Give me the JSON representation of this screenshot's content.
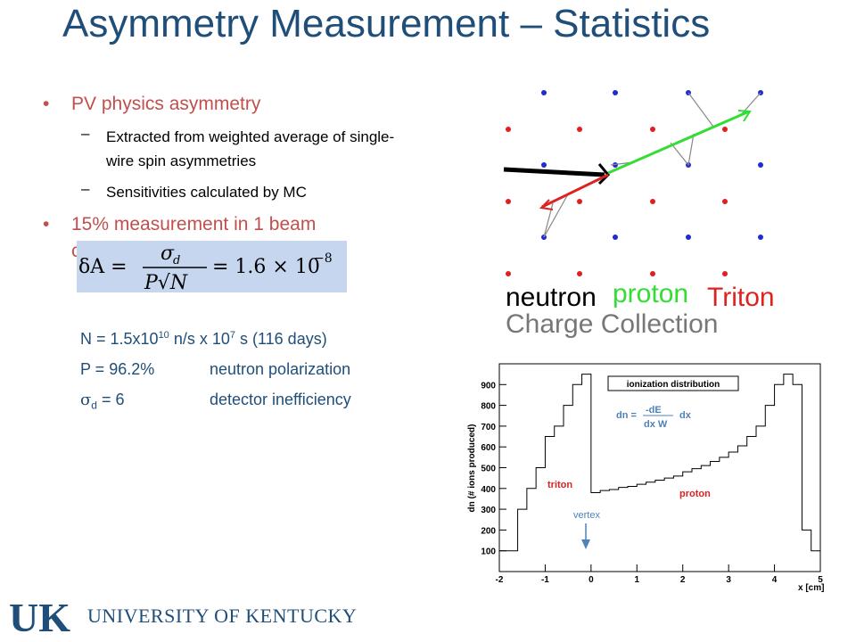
{
  "slide": {
    "title": "Asymmetry Measurement – Statistics",
    "bullets": [
      {
        "text": "PV physics asymmetry",
        "subitems": [
          "Extracted from weighted average of single-wire spin asymmetries",
          "Sensitivities calculated by MC"
        ]
      },
      {
        "text_line1": "15% measurement in 1 beam",
        "text_line2_visible": "c"
      }
    ],
    "formula": {
      "lhs": "δA =",
      "numerator": "σ",
      "numerator_sub": "d",
      "denominator": "P√N",
      "rhs": "= 1.6 × 10",
      "rhs_exp": "−8"
    },
    "params": {
      "n_line": {
        "prefix": "N  = 1.5x10",
        "exp1": "10",
        "mid": " n/s   x 10",
        "exp2": "7",
        "suffix": " s  (116 days)"
      },
      "p_line": {
        "label": "P  = 96.2%",
        "desc": "neutron polarization"
      },
      "sigma_line": {
        "symbol": "σ",
        "sub": "d",
        "value": " = 6",
        "desc": "detector inefficiency"
      }
    },
    "colors": {
      "title": "#1f4e79",
      "bullet": "#c0504d",
      "formula_bg": "#c6d6ef",
      "neutron": "#000000",
      "proton": "#33dd33",
      "triton": "#dd2222",
      "wire_blue": "#1f2bd6",
      "wire_red": "#e02020"
    }
  },
  "track_diagram": {
    "labels": {
      "neutron": "neutron",
      "proton": "proton",
      "triton": "Triton",
      "charge_collection": "Charge Collection"
    }
  },
  "chart_data": {
    "type": "line",
    "title": "ionization distribution",
    "formula_lhs": "dn =",
    "formula_num": "-dE",
    "formula_den": "dx W",
    "formula_rhs": "dx",
    "xlabel": "x [cm]",
    "ylabel": "dn (# ions produced)",
    "xlim": [
      -2,
      5
    ],
    "ylim": [
      0,
      1000
    ],
    "xticks": [
      -2,
      -1,
      0,
      1,
      2,
      3,
      4,
      5
    ],
    "yticks": [
      100,
      200,
      300,
      400,
      500,
      600,
      700,
      800,
      900
    ],
    "annotations": {
      "triton": "triton",
      "proton": "proton",
      "vertex": "vertex"
    },
    "series": [
      {
        "x": [
          -2,
          -1.8,
          -1.6,
          -1.4,
          -1.2,
          -1.0,
          -0.8,
          -0.6,
          -0.4,
          -0.2,
          0,
          0.2,
          0.4,
          0.6,
          0.8,
          1.0,
          1.2,
          1.4,
          1.6,
          1.8,
          2.0,
          2.2,
          2.4,
          2.6,
          2.8,
          3.0,
          3.2,
          3.4,
          3.6,
          3.8,
          4.0,
          4.2,
          4.4,
          4.6,
          4.8
        ],
        "values": [
          100,
          100,
          300,
          400,
          500,
          650,
          700,
          800,
          900,
          950,
          380,
          390,
          395,
          405,
          410,
          420,
          430,
          440,
          450,
          460,
          480,
          495,
          510,
          530,
          550,
          575,
          605,
          650,
          700,
          800,
          900,
          950,
          900,
          200,
          100
        ]
      }
    ]
  },
  "footer": {
    "logo_letters": "UK",
    "university": "UNIVERSITY OF KENTUCKY"
  }
}
